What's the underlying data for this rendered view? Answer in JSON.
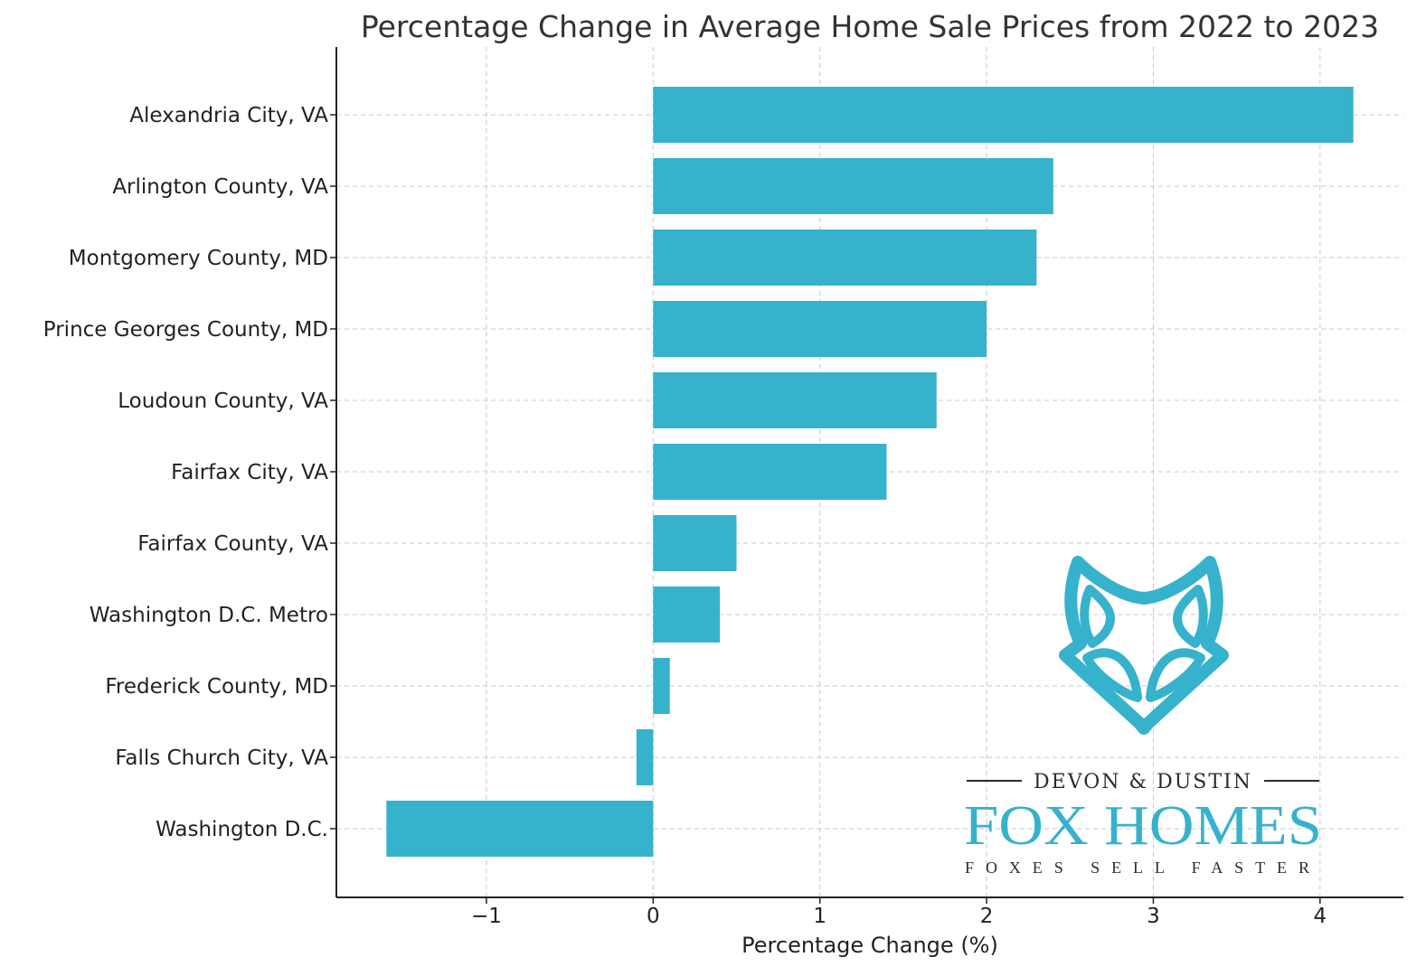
{
  "chart_data": {
    "type": "bar",
    "orientation": "horizontal",
    "title": "Percentage Change in Average Home Sale Prices from 2022 to 2023",
    "xlabel": "Percentage Change (%)",
    "ylabel": "",
    "categories": [
      "Alexandria City, VA",
      "Arlington County, VA",
      "Montgomery County, MD",
      "Prince Georges County, MD",
      "Loudoun County, VA",
      "Fairfax City, VA",
      "Fairfax County, VA",
      "Washington D.C. Metro",
      "Frederick County, MD",
      "Falls Church City, VA",
      "Washington D.C."
    ],
    "values": [
      4.2,
      2.4,
      2.3,
      2.0,
      1.7,
      1.4,
      0.5,
      0.4,
      0.1,
      -0.1,
      -1.6
    ],
    "xlim": [
      -1.9,
      4.5
    ],
    "xticks": [
      -1,
      0,
      1,
      2,
      3,
      4
    ],
    "xtick_labels": [
      "−1",
      "0",
      "1",
      "2",
      "3",
      "4"
    ],
    "grid": true,
    "bar_color": "#37b2cc"
  },
  "logo": {
    "top_line": "DEVON & DUSTIN",
    "name": "FOX HOMES",
    "tagline": "FOXES SELL FASTER",
    "color": "#37b2cc",
    "icon": "fox-head-icon"
  }
}
